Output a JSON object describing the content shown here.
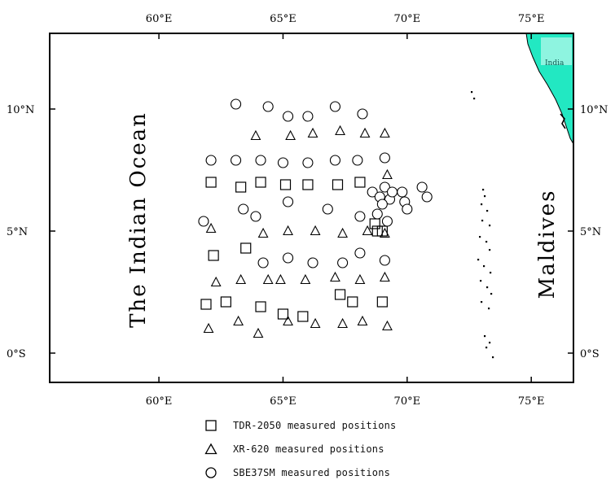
{
  "map": {
    "lon_range": [
      55.6,
      76.7
    ],
    "lat_range": [
      -1.2,
      13.1
    ],
    "x_ticks": [
      {
        "value": 60,
        "label": "60°E"
      },
      {
        "value": 65,
        "label": "65°E"
      },
      {
        "value": 70,
        "label": "70°E"
      },
      {
        "value": 75,
        "label": "75°E"
      }
    ],
    "y_ticks": [
      {
        "value": 10,
        "label": "10°N"
      },
      {
        "value": 5,
        "label": "5°N"
      },
      {
        "value": 0,
        "label": "0°S"
      }
    ],
    "labels": {
      "ocean": "The Indian Ocean",
      "country": "Maldives",
      "land": "India"
    },
    "colors": {
      "land": "#22e8c2",
      "land_light": "#8ef4e0",
      "frame": "#000000",
      "marker": "#000000"
    }
  },
  "chart_data": {
    "type": "scatter",
    "xlabel": "",
    "ylabel": "",
    "xlim": [
      55.6,
      76.7
    ],
    "ylim": [
      -1.2,
      13.1
    ],
    "grid": false,
    "legend_position": "bottom",
    "series": [
      {
        "name": "TDR-2050 measured positions",
        "marker": "square",
        "points": [
          [
            62.1,
            7.0
          ],
          [
            63.3,
            6.8
          ],
          [
            64.1,
            7.0
          ],
          [
            65.1,
            6.9
          ],
          [
            66.0,
            6.9
          ],
          [
            67.2,
            6.9
          ],
          [
            68.1,
            7.0
          ],
          [
            68.7,
            5.3
          ],
          [
            68.8,
            5.0
          ],
          [
            69.0,
            5.0
          ],
          [
            62.2,
            4.0
          ],
          [
            63.5,
            4.3
          ],
          [
            61.9,
            2.0
          ],
          [
            62.7,
            2.1
          ],
          [
            64.1,
            1.9
          ],
          [
            65.0,
            1.6
          ],
          [
            65.8,
            1.5
          ],
          [
            67.3,
            2.4
          ],
          [
            67.8,
            2.1
          ],
          [
            69.0,
            2.1
          ]
        ]
      },
      {
        "name": "XR-620 measured positions",
        "marker": "triangle",
        "points": [
          [
            63.9,
            8.9
          ],
          [
            65.3,
            8.9
          ],
          [
            66.2,
            9.0
          ],
          [
            67.3,
            9.1
          ],
          [
            68.3,
            9.0
          ],
          [
            69.1,
            9.0
          ],
          [
            69.2,
            7.3
          ],
          [
            62.1,
            5.1
          ],
          [
            64.2,
            4.9
          ],
          [
            65.2,
            5.0
          ],
          [
            66.3,
            5.0
          ],
          [
            67.4,
            4.9
          ],
          [
            68.4,
            5.0
          ],
          [
            69.1,
            4.9
          ],
          [
            62.3,
            2.9
          ],
          [
            63.3,
            3.0
          ],
          [
            64.4,
            3.0
          ],
          [
            64.9,
            3.0
          ],
          [
            65.9,
            3.0
          ],
          [
            67.1,
            3.1
          ],
          [
            68.1,
            3.0
          ],
          [
            69.1,
            3.1
          ],
          [
            62.0,
            1.0
          ],
          [
            63.2,
            1.3
          ],
          [
            64.0,
            0.8
          ],
          [
            65.2,
            1.3
          ],
          [
            66.3,
            1.2
          ],
          [
            67.4,
            1.2
          ],
          [
            68.2,
            1.3
          ],
          [
            69.2,
            1.1
          ]
        ]
      },
      {
        "name": "SBE37SM measured positions",
        "marker": "circle",
        "points": [
          [
            63.1,
            10.2
          ],
          [
            64.4,
            10.1
          ],
          [
            65.2,
            9.7
          ],
          [
            66.0,
            9.7
          ],
          [
            67.1,
            10.1
          ],
          [
            68.2,
            9.8
          ],
          [
            62.1,
            7.9
          ],
          [
            63.1,
            7.9
          ],
          [
            64.1,
            7.9
          ],
          [
            65.0,
            7.8
          ],
          [
            66.0,
            7.8
          ],
          [
            67.1,
            7.9
          ],
          [
            68.0,
            7.9
          ],
          [
            69.1,
            8.0
          ],
          [
            61.8,
            5.4
          ],
          [
            63.4,
            5.9
          ],
          [
            63.9,
            5.6
          ],
          [
            65.2,
            6.2
          ],
          [
            66.8,
            5.9
          ],
          [
            68.1,
            5.6
          ],
          [
            68.6,
            6.6
          ],
          [
            68.9,
            6.4
          ],
          [
            69.1,
            6.8
          ],
          [
            69.3,
            6.3
          ],
          [
            69.4,
            6.6
          ],
          [
            69.8,
            6.6
          ],
          [
            69.9,
            6.2
          ],
          [
            69.0,
            6.1
          ],
          [
            68.8,
            5.7
          ],
          [
            69.2,
            5.4
          ],
          [
            70.0,
            5.9
          ],
          [
            70.6,
            6.8
          ],
          [
            70.8,
            6.4
          ],
          [
            64.2,
            3.7
          ],
          [
            65.2,
            3.9
          ],
          [
            66.2,
            3.7
          ],
          [
            67.4,
            3.7
          ],
          [
            68.1,
            4.1
          ],
          [
            69.1,
            3.8
          ]
        ]
      }
    ]
  },
  "legend": {
    "items": [
      {
        "label": "TDR-2050 measured positions",
        "marker": "square"
      },
      {
        "label": "XR-620 measured positions",
        "marker": "triangle"
      },
      {
        "label": "SBE37SM measured positions",
        "marker": "circle"
      }
    ]
  }
}
